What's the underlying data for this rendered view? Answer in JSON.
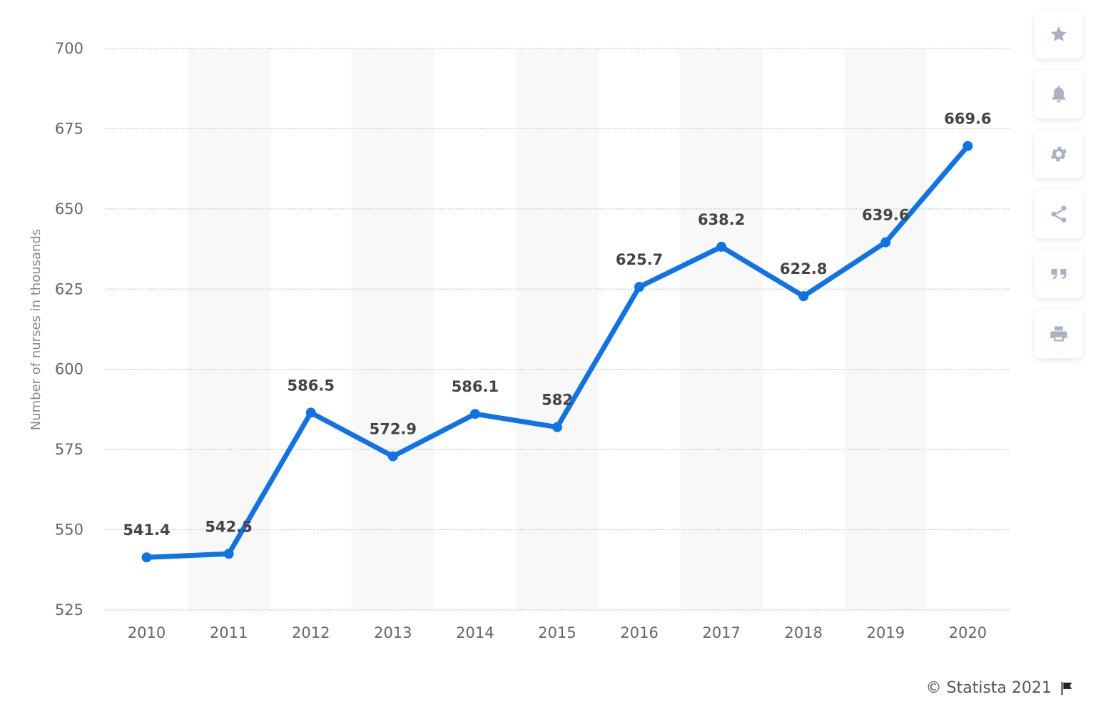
{
  "chart_data": {
    "type": "line",
    "categories": [
      "2010",
      "2011",
      "2012",
      "2013",
      "2014",
      "2015",
      "2016",
      "2017",
      "2018",
      "2019",
      "2020"
    ],
    "values": [
      541.4,
      542.5,
      586.5,
      572.9,
      586.1,
      582,
      625.7,
      638.2,
      622.8,
      639.6,
      669.6
    ],
    "value_labels": [
      "541.4",
      "542.5",
      "586.5",
      "572.9",
      "586.1",
      "582",
      "625.7",
      "638.2",
      "622.8",
      "639.6",
      "669.6"
    ],
    "ylabel": "Number of nurses in thousands",
    "xlabel": "",
    "ylim": [
      525,
      700
    ],
    "yticks": [
      "700",
      "675",
      "650",
      "625",
      "600",
      "575",
      "550",
      "525"
    ],
    "grid": true,
    "line_color": "#0f73e8",
    "grid_color": "#c7c7c7",
    "band_color": "#f8f8f8"
  },
  "toolbar": {
    "buttons": [
      {
        "name": "favorite",
        "icon": "star-icon"
      },
      {
        "name": "notification",
        "icon": "bell-icon"
      },
      {
        "name": "settings",
        "icon": "gear-icon"
      },
      {
        "name": "share",
        "icon": "share-icon"
      },
      {
        "name": "cite",
        "icon": "quote-icon"
      },
      {
        "name": "print",
        "icon": "printer-icon"
      }
    ]
  },
  "footer": {
    "copyright": "© Statista 2021",
    "flag_icon": "flag-icon"
  }
}
